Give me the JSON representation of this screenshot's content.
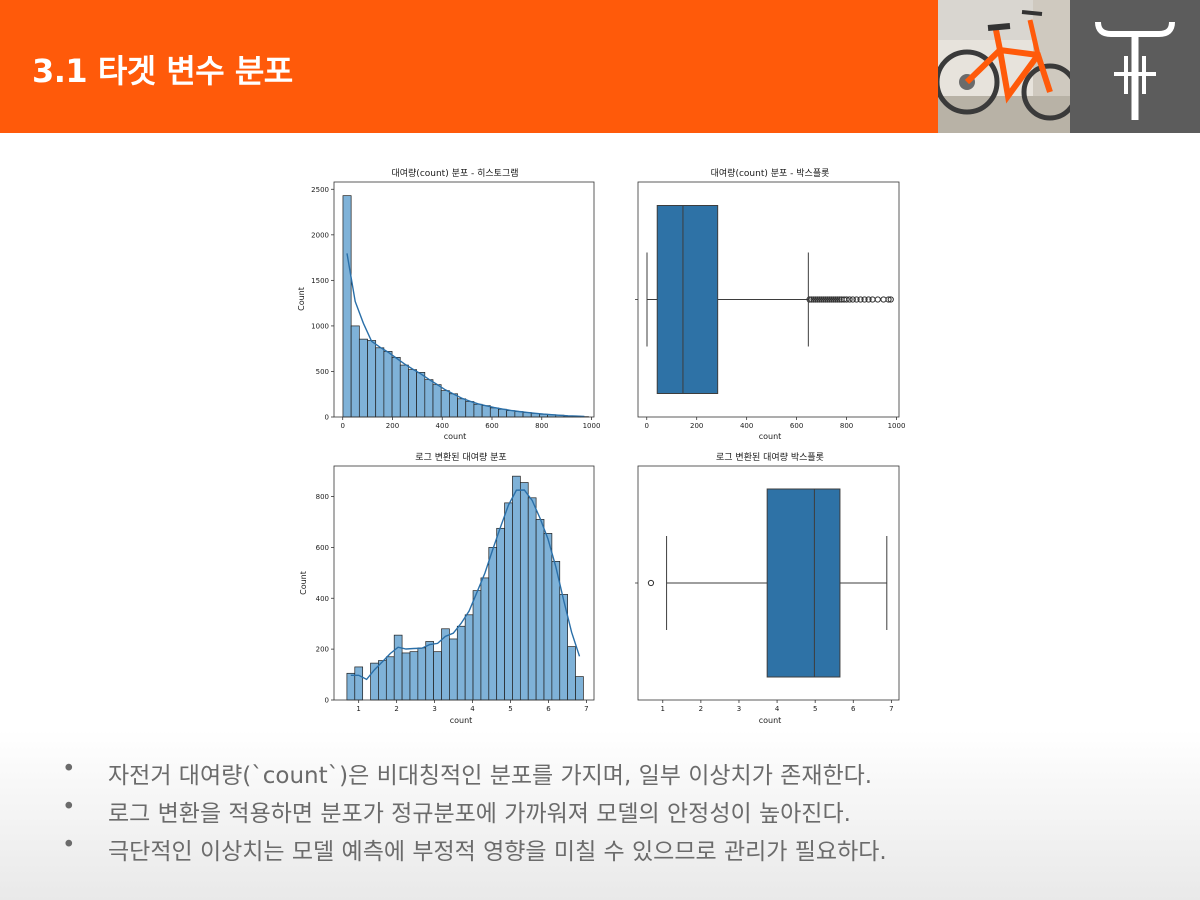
{
  "slide": {
    "title": "3.1 타겟 변수 분포",
    "bullets": [
      "자전거 대여량(`count`)은 비대칭적인 분포를 가지며, 일부 이상치가 존재한다.",
      "로그 변환을 적용하면 분포가 정규분포에 가까워져 모델의 안정성이 높아진다.",
      "극단적인 이상치는 모델 예측에 부정적 영향을 미칠 수 있으므로 관리가 필요하다."
    ],
    "bullet_symbol": "•"
  },
  "colors": {
    "header_bg": "#ff5a0a",
    "logo_bg": "#5c5c5c",
    "hist_fill": "#7fb2d8",
    "box_fill": "#2e72a6",
    "kde_line": "#2a6fa8"
  },
  "icons": [
    "bicycle-photo",
    "bicycle-logo-icon"
  ],
  "chart_data": [
    {
      "type": "bar",
      "title": "대여량(count) 분포 - 히스토그램",
      "xlabel": "count",
      "ylabel": "Count",
      "xlim": [
        -35,
        1010
      ],
      "ylim": [
        0,
        2580
      ],
      "xticks": [
        0,
        200,
        400,
        600,
        800,
        1000
      ],
      "yticks": [
        0,
        500,
        1000,
        1500,
        2000,
        2500
      ],
      "bin_start": 1,
      "bin_width": 32.9,
      "values": [
        2430,
        1000,
        855,
        840,
        760,
        720,
        655,
        570,
        520,
        490,
        410,
        355,
        290,
        255,
        200,
        170,
        140,
        125,
        100,
        85,
        70,
        60,
        50,
        40,
        30,
        25,
        20,
        12,
        8,
        4
      ],
      "kde": true
    },
    {
      "type": "boxplot",
      "title": "대여량(count) 분포 - 박스플롯",
      "xlabel": "count",
      "xlim": [
        -35,
        1010
      ],
      "xticks": [
        0,
        200,
        400,
        600,
        800,
        1000
      ],
      "whisker_low": 1,
      "q1": 42,
      "median": 145,
      "q3": 284,
      "whisker_high": 647,
      "outliers": [
        652,
        660,
        668,
        676,
        684,
        692,
        700,
        708,
        716,
        724,
        732,
        740,
        748,
        756,
        764,
        772,
        780,
        790,
        800,
        812,
        825,
        840,
        856,
        872,
        888,
        904,
        925,
        948,
        968,
        977
      ]
    },
    {
      "type": "bar",
      "title": "로그 변환된 대여량 분포",
      "xlabel": "count",
      "ylabel": "Count",
      "xlim": [
        0.35,
        7.2
      ],
      "ylim": [
        0,
        920
      ],
      "xticks": [
        1,
        2,
        3,
        4,
        5,
        6,
        7
      ],
      "yticks": [
        0,
        200,
        400,
        600,
        800
      ],
      "bin_start": 0.69,
      "bin_width": 0.2077,
      "values": [
        105,
        130,
        0,
        145,
        155,
        170,
        255,
        185,
        190,
        205,
        230,
        190,
        280,
        240,
        290,
        335,
        430,
        480,
        600,
        675,
        775,
        880,
        855,
        795,
        710,
        655,
        545,
        415,
        210,
        92
      ],
      "kde": true
    },
    {
      "type": "boxplot",
      "title": "로그 변환된 대여량 박스플롯",
      "xlabel": "count",
      "xlim": [
        0.35,
        7.2
      ],
      "xticks": [
        1,
        2,
        3,
        4,
        5,
        6,
        7
      ],
      "whisker_low": 1.1,
      "q1": 3.74,
      "median": 4.98,
      "q3": 5.65,
      "whisker_high": 6.88,
      "outliers": [
        0.69
      ]
    }
  ]
}
